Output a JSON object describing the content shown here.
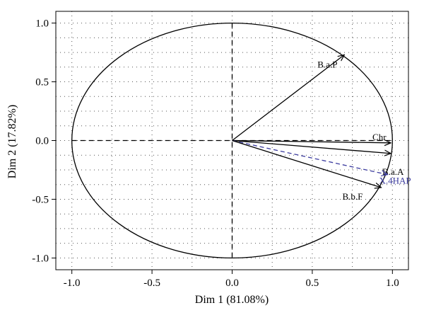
{
  "chart_data": {
    "type": "scatter",
    "subtype": "pca-variable-correlation-circle",
    "xlabel": "Dim 1 (81.08%)",
    "ylabel": "Dim 2 (17.82%)",
    "xlim": [
      -1.1,
      1.1
    ],
    "ylim": [
      -1.1,
      1.1
    ],
    "xticks": [
      -1.0,
      -0.5,
      0.0,
      0.5,
      1.0
    ],
    "xtick_labels": [
      "-1.0",
      "-0.5",
      "0.0",
      "0.5",
      "1.0"
    ],
    "yticks": [
      -1.0,
      -0.5,
      0.0,
      0.5,
      1.0
    ],
    "ytick_labels": [
      "-1.0",
      "-0.5",
      "0.0",
      "0.5",
      "1.0"
    ],
    "grid": true,
    "unit_circle": true,
    "vectors": [
      {
        "name": "B.a.P",
        "x": 0.7,
        "y": 0.73,
        "color": "#000000",
        "style": "solid"
      },
      {
        "name": "Chr",
        "x": 0.99,
        "y": -0.02,
        "color": "#000000",
        "style": "solid"
      },
      {
        "name": "B.a.A",
        "x": 0.99,
        "y": -0.11,
        "color": "#000000",
        "style": "solid"
      },
      {
        "name": "X.4HAP",
        "x": 0.97,
        "y": -0.29,
        "color": "#3b3b9e",
        "style": "dashed"
      },
      {
        "name": "B.b.F",
        "x": 0.93,
        "y": -0.4,
        "color": "#000000",
        "style": "solid"
      }
    ]
  }
}
